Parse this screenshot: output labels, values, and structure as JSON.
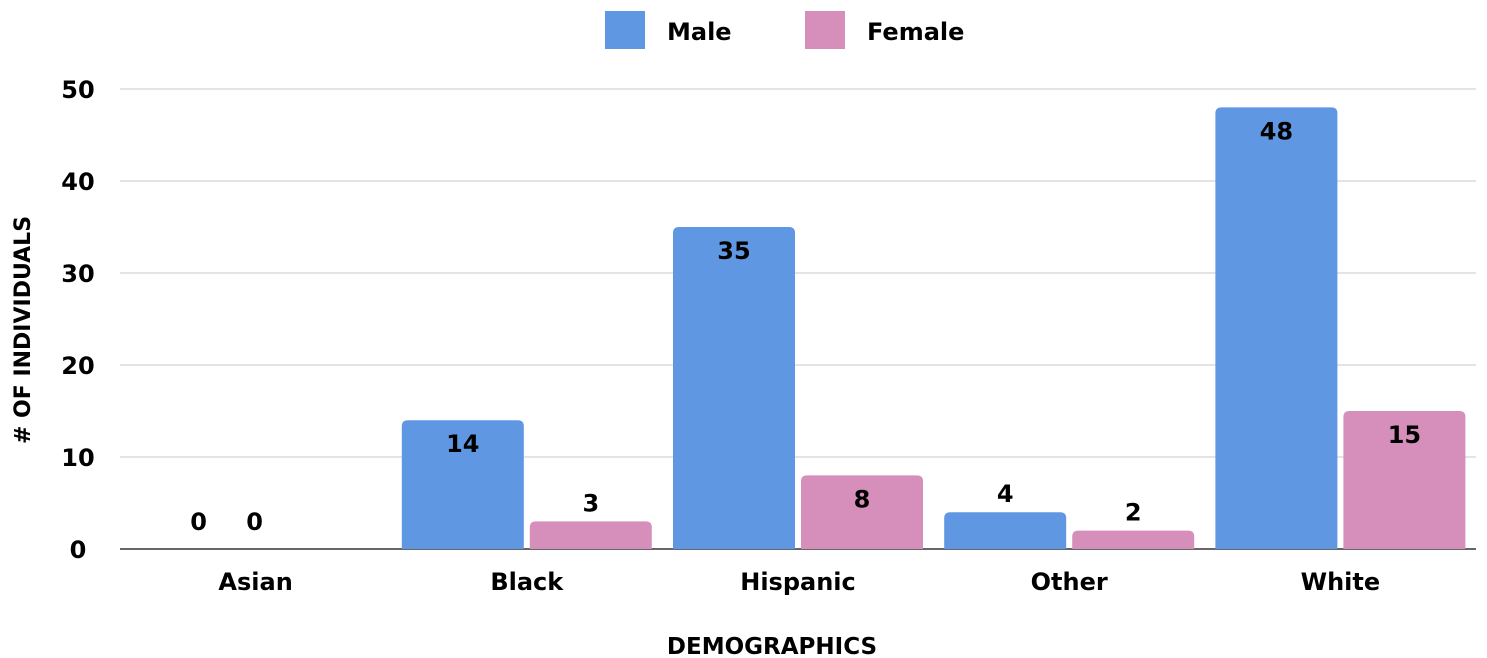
{
  "chart_data": {
    "type": "bar",
    "categories": [
      "Asian",
      "Black",
      "Hispanic",
      "Other",
      "White"
    ],
    "series": [
      {
        "name": "Male",
        "values": [
          0,
          14,
          35,
          4,
          48
        ],
        "color": "#5f97e3"
      },
      {
        "name": "Female",
        "values": [
          0,
          3,
          8,
          2,
          15
        ],
        "color": "#d68fba"
      }
    ],
    "xlabel": "DEMOGRAPHICS",
    "ylabel": "# OF INDIVIDUALS",
    "ylim": [
      0,
      50
    ],
    "yticks": [
      "0",
      "10",
      "20",
      "30",
      "40",
      "50"
    ],
    "grid": true,
    "legend_position": "top-center"
  }
}
